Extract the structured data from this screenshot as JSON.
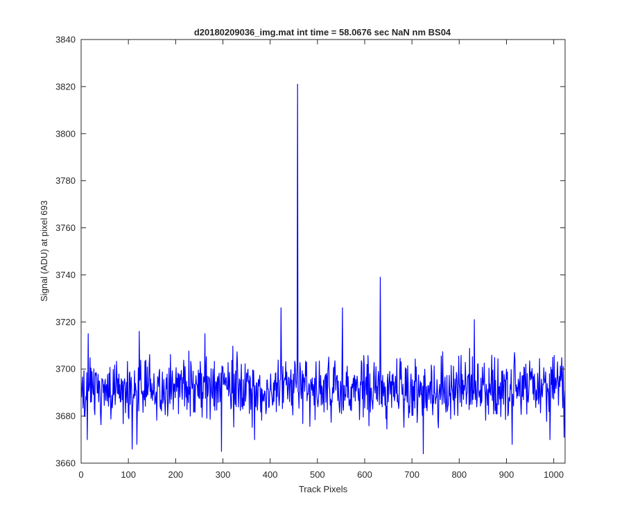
{
  "chart_data": {
    "type": "line",
    "title": "d20180209036_img.mat int time = 58.0676 sec  NaN nm BS04",
    "xlabel": "Track Pixels",
    "ylabel": "Signal (ADU) at pixel 693",
    "xlim": [
      0,
      1024
    ],
    "ylim": [
      3660,
      3840
    ],
    "xticks": [
      0,
      100,
      200,
      300,
      400,
      500,
      600,
      700,
      800,
      900,
      1000
    ],
    "yticks": [
      3660,
      3680,
      3700,
      3720,
      3740,
      3760,
      3780,
      3800,
      3820,
      3840
    ],
    "xtick_labels": [
      "0",
      "100",
      "200",
      "300",
      "400",
      "500",
      "600",
      "700",
      "800",
      "900",
      "1000"
    ],
    "ytick_labels": [
      "3660",
      "3680",
      "3700",
      "3720",
      "3740",
      "3760",
      "3780",
      "3800",
      "3820",
      "3840"
    ],
    "grid": false,
    "series": [
      {
        "color": "#0000ff",
        "baseline": 3692,
        "noise_amplitude": 9,
        "x_range": [
          1,
          1024
        ],
        "notable_points": [
          {
            "x": 13,
            "y": 3670
          },
          {
            "x": 15,
            "y": 3715
          },
          {
            "x": 108,
            "y": 3666
          },
          {
            "x": 118,
            "y": 3668
          },
          {
            "x": 123,
            "y": 3716
          },
          {
            "x": 262,
            "y": 3715
          },
          {
            "x": 297,
            "y": 3665
          },
          {
            "x": 367,
            "y": 3670
          },
          {
            "x": 423,
            "y": 3726
          },
          {
            "x": 458,
            "y": 3821
          },
          {
            "x": 553,
            "y": 3726
          },
          {
            "x": 633,
            "y": 3739
          },
          {
            "x": 724,
            "y": 3664
          },
          {
            "x": 832,
            "y": 3721
          },
          {
            "x": 912,
            "y": 3668
          },
          {
            "x": 992,
            "y": 3670
          },
          {
            "x": 1022,
            "y": 3671
          }
        ]
      }
    ]
  }
}
